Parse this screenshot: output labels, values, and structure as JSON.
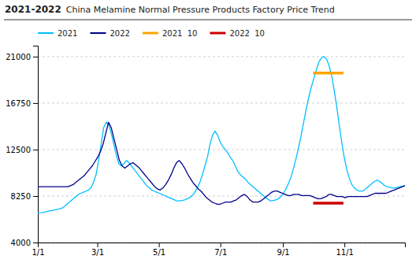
{
  "chart_data": {
    "type": "line",
    "title": "2021-2022",
    "subtitle": "China Melamine Normal Pressure Products Factory Price Trend",
    "xlim": [
      1,
      365
    ],
    "xticks": [
      {
        "value": 1,
        "label": "1/1"
      },
      {
        "value": 60,
        "label": "3/1"
      },
      {
        "value": 121,
        "label": "5/1"
      },
      {
        "value": 182,
        "label": "7/1"
      },
      {
        "value": 244,
        "label": "9/1"
      },
      {
        "value": 305,
        "label": "11/1"
      }
    ],
    "ylim": [
      4000,
      22000
    ],
    "yticks": [
      4000,
      8250,
      12500,
      16750,
      21000
    ],
    "grid": true,
    "legend": "top",
    "series": [
      {
        "name": "2021",
        "color": "#00bfff",
        "x": [
          1,
          3.51,
          6.02,
          8.53,
          11.04,
          13.55,
          16.06,
          18.57,
          21.08,
          23.59,
          26.1,
          28.61,
          31.12,
          33.63,
          36.14,
          38.66,
          41.17,
          43.68,
          46.19,
          48.7,
          51.21,
          53.72,
          56.23,
          58.74,
          61.25,
          63.76,
          66.27,
          68.78,
          71.29,
          73.8,
          76.31,
          78.82,
          81.33,
          83.84,
          86.35,
          88.86,
          91.37,
          93.88,
          96.39,
          98.9,
          101.41,
          103.92,
          106.43,
          108.94,
          111.46,
          113.97,
          116.48,
          118.99,
          121.5,
          124.01,
          126.52,
          129.03,
          131.54,
          134.05,
          136.56,
          139.07,
          141.58,
          144.09,
          146.6,
          149.11,
          151.62,
          154.13,
          156.64,
          159.15,
          161.66,
          164.17,
          166.68,
          169.19,
          171.7,
          174.21,
          176.72,
          179.23,
          181.74,
          184.26,
          186.77,
          189.28,
          191.79,
          194.3,
          196.81,
          199.32,
          201.83,
          204.34,
          206.85,
          209.36,
          211.87,
          214.38,
          216.89,
          219.4,
          221.91,
          224.42,
          226.93,
          229.44,
          231.95,
          234.46,
          236.97,
          239.48,
          241.99,
          244.5,
          247.01,
          249.52,
          252.03,
          254.54,
          257.06,
          259.57,
          262.08,
          264.59,
          267.1,
          269.61,
          272.12,
          274.63,
          277.14,
          279.65,
          282.16,
          284.67,
          287.18,
          289.69,
          292.2,
          294.71,
          297.22,
          299.73,
          302.24,
          304.75,
          307.26,
          309.77,
          312.28,
          314.79,
          317.3,
          319.81,
          322.32,
          324.83,
          327.34,
          329.86,
          332.37,
          334.88,
          337.39,
          339.9,
          342.41,
          344.92,
          347.43,
          349.94,
          352.45,
          354.96,
          357.47,
          359.98,
          362.49,
          365
        ],
        "values": [
          6700,
          6720,
          6750,
          6800,
          6850,
          6900,
          6950,
          7000,
          7050,
          7100,
          7200,
          7400,
          7600,
          7800,
          8000,
          8200,
          8400,
          8500,
          8600,
          8700,
          8800,
          9000,
          9500,
          10200,
          11500,
          13000,
          14500,
          15000,
          14800,
          14000,
          13000,
          12000,
          11200,
          11000,
          11200,
          11500,
          11300,
          11000,
          10700,
          10400,
          10100,
          9800,
          9500,
          9200,
          9000,
          8800,
          8700,
          8600,
          8500,
          8400,
          8300,
          8200,
          8100,
          8000,
          7900,
          7800,
          7800,
          7850,
          7900,
          8000,
          8100,
          8300,
          8600,
          9000,
          9500,
          10200,
          11000,
          11800,
          13000,
          13800,
          14200,
          13800,
          13200,
          12800,
          12500,
          12200,
          11800,
          11500,
          11000,
          10500,
          10200,
          10000,
          9800,
          9500,
          9300,
          9100,
          8900,
          8700,
          8500,
          8300,
          8100,
          7950,
          7800,
          7850,
          7900,
          8000,
          8200,
          8500,
          8900,
          9400,
          10000,
          10800,
          11700,
          12700,
          13800,
          15000,
          16200,
          17300,
          18200,
          19000,
          19800,
          20500,
          20900,
          21000,
          20800,
          20200,
          19300,
          18000,
          16500,
          14800,
          13200,
          11800,
          10700,
          9900,
          9300,
          9000,
          8800,
          8700,
          8700,
          8800,
          9000,
          9200,
          9400,
          9600,
          9700,
          9600,
          9400,
          9200,
          9100,
          9050,
          9000,
          9000,
          9050,
          9100,
          9150,
          9200
        ]
      },
      {
        "name": "2022",
        "color": "#00008b",
        "x": [
          1,
          3.7,
          6.39,
          9.09,
          11.79,
          14.48,
          17.18,
          19.87,
          22.57,
          25.27,
          27.96,
          30.66,
          33.36,
          36.05,
          38.75,
          41.44,
          44.14,
          46.84,
          49.53,
          52.23,
          54.93,
          57.62,
          60.32,
          63.01,
          65.71,
          68.41,
          71.1,
          73.8,
          76.5,
          79.19,
          81.89,
          84.59,
          87.28,
          89.98,
          92.67,
          95.37,
          98.07,
          100.76,
          103.46,
          106.16,
          108.85,
          111.55,
          114.24,
          116.94,
          119.64,
          122.33,
          125.03,
          127.73,
          130.42,
          133.12,
          135.81,
          138.51,
          141.21,
          143.9,
          146.6,
          149.3,
          151.99,
          154.69,
          157.39,
          160.08,
          162.78,
          165.47,
          168.17,
          170.87,
          173.56,
          176.26,
          178.96,
          181.65,
          184.35,
          187.04,
          189.74,
          192.44,
          195.13,
          197.83,
          200.53,
          203.22,
          205.92,
          208.61,
          211.31,
          214.01,
          216.7,
          219.4,
          222.1,
          224.79,
          227.49,
          230.19,
          232.88,
          235.58,
          238.27,
          240.97,
          243.67,
          246.36,
          249.06,
          251.76,
          254.45,
          257.15,
          259.84,
          262.54,
          265.24,
          267.93,
          270.63,
          273.33,
          276.02,
          278.72,
          281.41,
          284.11,
          286.81,
          289.5,
          292.2,
          294.9,
          297.59,
          300.29,
          302.99,
          305.68,
          308.38,
          311.07,
          313.77,
          316.47,
          319.16,
          321.86,
          324.56,
          327.25,
          329.95,
          332.64,
          335.34,
          338.04,
          340.73,
          343.43,
          346.13,
          348.82,
          351.52,
          354.21,
          356.91,
          359.61,
          362.3,
          365
        ],
        "values": [
          9100,
          9100,
          9100,
          9100,
          9100,
          9100,
          9100,
          9100,
          9100,
          9100,
          9100,
          9100,
          9200,
          9300,
          9500,
          9700,
          9900,
          10100,
          10400,
          10700,
          11000,
          11400,
          11800,
          12300,
          13000,
          14000,
          15000,
          14500,
          13500,
          12500,
          11500,
          11000,
          10800,
          11000,
          11200,
          11300,
          11100,
          10900,
          10600,
          10300,
          10000,
          9700,
          9400,
          9100,
          8900,
          8800,
          9000,
          9300,
          9700,
          10200,
          10800,
          11300,
          11500,
          11200,
          10800,
          10300,
          9900,
          9500,
          9200,
          8900,
          8700,
          8400,
          8100,
          7900,
          7700,
          7600,
          7500,
          7500,
          7600,
          7700,
          7700,
          7700,
          7800,
          7900,
          8100,
          8300,
          8400,
          8200,
          7900,
          7700,
          7700,
          7700,
          7800,
          8000,
          8200,
          8400,
          8600,
          8700,
          8700,
          8600,
          8500,
          8400,
          8300,
          8300,
          8400,
          8400,
          8400,
          8300,
          8300,
          8300,
          8300,
          8200,
          8100,
          8000,
          8000,
          8100,
          8200,
          8400,
          8400,
          8300,
          8200,
          8200,
          8200,
          8100,
          8200,
          8200,
          8200,
          8200,
          8200,
          8200,
          8200,
          8200,
          8300,
          8400,
          8500,
          8500,
          8500,
          8500,
          8500,
          8600,
          8700,
          8800,
          8900,
          9000,
          9100,
          9200
        ]
      },
      {
        "name": "2021  10",
        "color": "#ffa500",
        "x": [
          274,
          304
        ],
        "values": [
          19500,
          19500
        ]
      },
      {
        "name": "2022  10",
        "color": "#cc0000",
        "x": [
          274,
          304
        ],
        "values": [
          7600,
          7600
        ]
      }
    ]
  }
}
